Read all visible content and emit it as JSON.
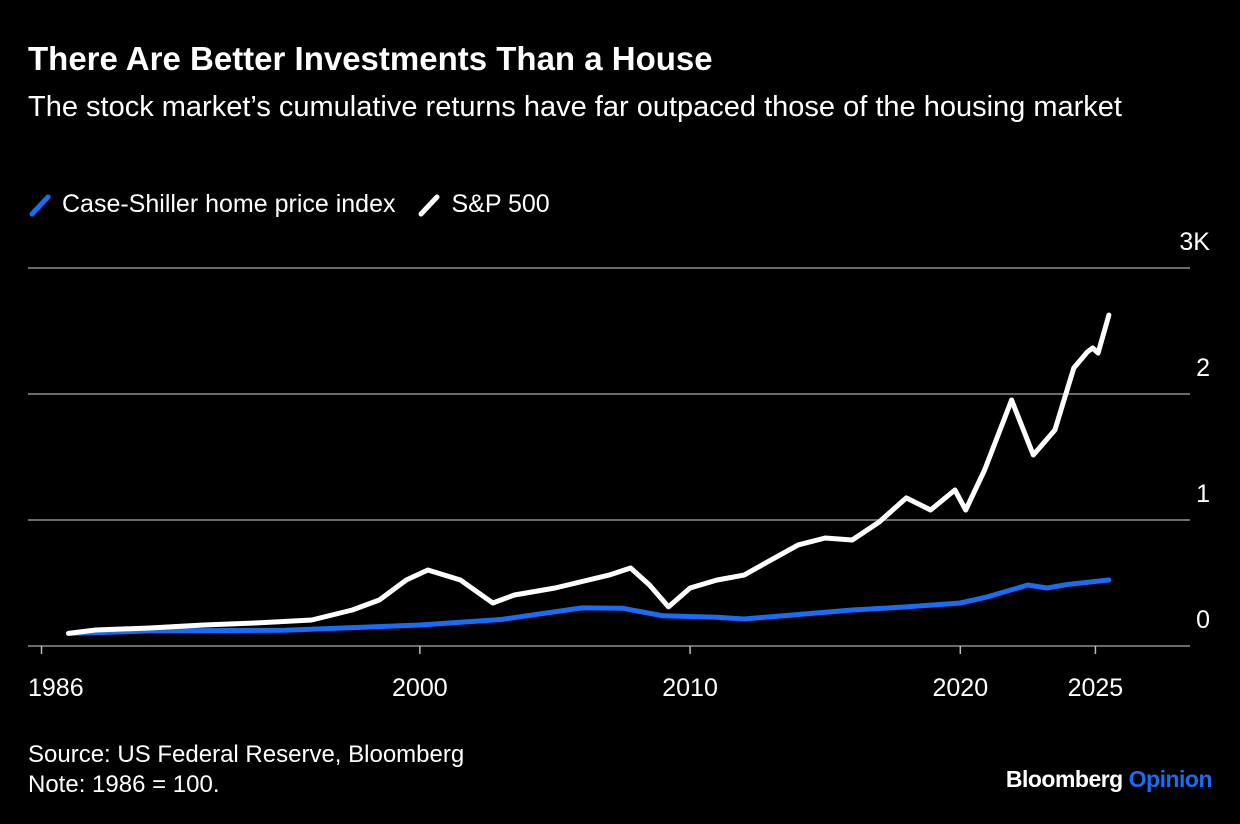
{
  "chart_data": {
    "type": "line",
    "title": "There Are Better Investments Than a House",
    "subtitle": "The stock market’s cumulative returns have far outpaced those of the housing market",
    "source": "Source: US Federal Reserve, Bloomberg",
    "note": "Note: 1986 = 100.",
    "xlim": [
      1985.5,
      2028.5
    ],
    "xticks": [
      1986,
      2000,
      2010,
      2020,
      2025
    ],
    "ylim": [
      0,
      3000
    ],
    "yticks": [
      0,
      {
        "value": 1000,
        "label": "1"
      },
      {
        "value": 2000,
        "label": "2"
      },
      {
        "value": 3000,
        "label": "3K"
      }
    ],
    "grid": true,
    "series": [
      {
        "name": "Case-Shiller home price index",
        "color": "#1a6cf5",
        "x": [
          1987,
          1990,
          1995,
          2000,
          2003,
          2006,
          2007.5,
          2009,
          2011,
          2012,
          2014,
          2016,
          2018,
          2020,
          2021,
          2022.5,
          2023.2,
          2024,
          2025.5
        ],
        "values": [
          100,
          120,
          125,
          167,
          210,
          302,
          300,
          240,
          228,
          214,
          250,
          286,
          310,
          341,
          390,
          484,
          460,
          490,
          524
        ]
      },
      {
        "name": "S&P 500",
        "color": "#ffffff",
        "x": [
          1987,
          1988,
          1990,
          1992,
          1994,
          1996,
          1997.5,
          1998.5,
          1999.5,
          2000.3,
          2001.5,
          2002.7,
          2003.5,
          2005,
          2007,
          2007.8,
          2008.5,
          2009.2,
          2010,
          2011,
          2012,
          2013,
          2014,
          2015,
          2016,
          2017,
          2018,
          2018.9,
          2019.8,
          2020.2,
          2020.9,
          2021.9,
          2022.7,
          2023.5,
          2024.2,
          2024.7,
          2024.9,
          2025.1,
          2025.5
        ],
        "values": [
          100,
          127,
          143,
          167,
          183,
          206,
          286,
          365,
          524,
          603,
          524,
          341,
          405,
          460,
          563,
          619,
          484,
          310,
          460,
          524,
          563,
          683,
          802,
          857,
          841,
          984,
          1175,
          1079,
          1238,
          1079,
          1397,
          1952,
          1516,
          1714,
          2206,
          2333,
          2365,
          2325,
          2627
        ]
      }
    ]
  },
  "logo": {
    "name": "Bloomberg",
    "section": "Opinion"
  }
}
